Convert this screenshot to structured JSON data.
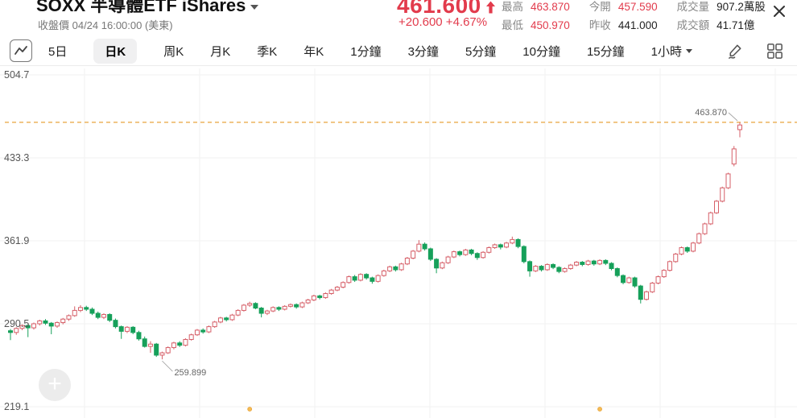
{
  "header": {
    "title": "SOXX 半導體ETF iShares",
    "subtitle": "收盤價 04/24 16:00:00 (美東)",
    "price": "461.600",
    "change": "+20.600 +4.67%",
    "stats": {
      "rows": [
        [
          {
            "label": "最高",
            "value": "463.870",
            "color": "#e23b4c"
          },
          {
            "label": "今開",
            "value": "457.590",
            "color": "#e23b4c"
          },
          {
            "label": "成交量",
            "value": "907.2萬股",
            "color": "#222222"
          }
        ],
        [
          {
            "label": "最低",
            "value": "450.970",
            "color": "#e23b4c"
          },
          {
            "label": "昨收",
            "value": "441.000",
            "color": "#222222"
          },
          {
            "label": "成交額",
            "value": "41.71億",
            "color": "#222222"
          }
        ]
      ]
    }
  },
  "toolbar": {
    "tabs": [
      {
        "label": "5日"
      },
      {
        "label": "日K",
        "selected": true
      },
      {
        "label": "周K"
      },
      {
        "label": "月K"
      },
      {
        "label": "季K"
      },
      {
        "label": "年K"
      },
      {
        "label": "1分鐘"
      },
      {
        "label": "3分鐘"
      },
      {
        "label": "5分鐘"
      },
      {
        "label": "10分鐘"
      },
      {
        "label": "15分鐘"
      },
      {
        "label": "1小時",
        "has_caret": true
      }
    ],
    "icons": [
      "chart-style-icon",
      "draw-pencil-icon",
      "layout-grid-icon"
    ]
  },
  "colors": {
    "up_candle": "#d65f68",
    "down_candle": "#16a05a",
    "price_red": "#e23b4c",
    "high_dashed_line": "#e8a43c",
    "gridline": "#f0f0f0",
    "annotation_text": "#666666",
    "event_dot": "#f5bc55"
  },
  "chart_data": {
    "type": "candlestick",
    "symbol": "SOXX",
    "period": "日K",
    "y_ticks": [
      504.7,
      433.3,
      361.9,
      290.5,
      219.1
    ],
    "high_line": {
      "value": 463.87,
      "label": "463.870"
    },
    "low_annotation": {
      "value": 259.899,
      "label": "259.899",
      "index": 26
    },
    "event_dot_indices": [
      41,
      101
    ],
    "candles": [
      [
        284.5,
        286,
        276.5,
        283
      ],
      [
        283,
        287.5,
        281,
        286.5
      ],
      [
        286.5,
        290,
        285,
        289
      ],
      [
        289,
        290,
        279,
        287
      ],
      [
        287,
        291.5,
        285.5,
        290.5
      ],
      [
        290.5,
        294,
        289,
        293
      ],
      [
        293,
        294.5,
        289.5,
        291
      ],
      [
        291,
        292,
        281.5,
        288.5
      ],
      [
        288.5,
        292.5,
        287,
        291.5
      ],
      [
        291.5,
        295.5,
        290,
        294.5
      ],
      [
        294.5,
        298.5,
        293,
        297.5
      ],
      [
        297.5,
        305.5,
        296.5,
        302
      ],
      [
        302,
        306.5,
        300.5,
        304.5
      ],
      [
        304.5,
        306,
        301.5,
        303
      ],
      [
        303,
        304.5,
        298,
        299.5
      ],
      [
        299.5,
        301,
        294.5,
        296
      ],
      [
        296,
        299.5,
        294.5,
        298.5
      ],
      [
        298.5,
        299.5,
        292,
        293.5
      ],
      [
        293.5,
        295,
        286.5,
        288
      ],
      [
        288,
        289,
        277.5,
        284
      ],
      [
        284,
        288.5,
        282.5,
        287.5
      ],
      [
        287.5,
        288.5,
        281.5,
        283
      ],
      [
        283,
        284.5,
        276,
        277.5
      ],
      [
        277.5,
        279.5,
        270,
        271
      ],
      [
        271,
        275.5,
        265.5,
        273
      ],
      [
        273,
        274,
        262,
        263.5
      ],
      [
        263.5,
        266.5,
        259.899,
        265.5
      ],
      [
        265.5,
        271,
        264.5,
        270
      ],
      [
        270,
        275,
        268.5,
        274
      ],
      [
        274,
        275.5,
        270.5,
        272
      ],
      [
        272,
        278,
        271,
        277
      ],
      [
        277,
        282,
        276,
        281
      ],
      [
        281,
        286,
        280,
        285
      ],
      [
        285,
        286.5,
        282,
        283.5
      ],
      [
        283.5,
        289,
        282.5,
        288
      ],
      [
        288,
        293,
        287,
        292
      ],
      [
        292,
        296.5,
        291,
        295.5
      ],
      [
        295.5,
        296.5,
        292.5,
        294
      ],
      [
        294,
        299,
        293,
        298
      ],
      [
        298,
        303,
        297,
        302
      ],
      [
        302,
        307.5,
        301,
        306.5
      ],
      [
        306.5,
        309.5,
        305,
        308
      ],
      [
        308,
        309,
        303,
        304
      ],
      [
        304,
        305,
        296,
        299.5
      ],
      [
        299.5,
        302.5,
        298,
        301.5
      ],
      [
        301.5,
        305.5,
        300.5,
        304.5
      ],
      [
        304.5,
        305.5,
        301.5,
        303
      ],
      [
        303,
        306.5,
        302,
        305.5
      ],
      [
        305.5,
        308,
        304.5,
        307
      ],
      [
        307,
        308,
        303.5,
        305
      ],
      [
        305,
        309.5,
        304,
        308.5
      ],
      [
        308.5,
        312,
        307.5,
        311
      ],
      [
        311,
        315.5,
        310,
        314.5
      ],
      [
        314.5,
        315.5,
        311.5,
        313
      ],
      [
        313,
        317.5,
        312,
        316.5
      ],
      [
        316.5,
        320.5,
        315.5,
        319.5
      ],
      [
        319.5,
        323,
        318.5,
        322
      ],
      [
        322,
        327,
        321,
        326
      ],
      [
        326,
        332,
        325,
        331
      ],
      [
        331,
        332.5,
        326.5,
        328
      ],
      [
        328,
        334,
        327,
        333
      ],
      [
        333,
        334,
        328.5,
        330
      ],
      [
        330,
        331,
        325,
        327
      ],
      [
        327,
        333,
        326,
        332
      ],
      [
        332,
        337,
        331,
        336
      ],
      [
        336,
        340.5,
        335,
        339.5
      ],
      [
        339.5,
        340.5,
        335.5,
        337
      ],
      [
        337,
        343,
        336,
        342
      ],
      [
        342,
        348,
        341,
        347
      ],
      [
        347,
        354,
        346,
        353
      ],
      [
        353,
        362.5,
        352,
        359
      ],
      [
        359,
        360.5,
        353.5,
        355
      ],
      [
        355,
        356,
        344.5,
        346
      ],
      [
        346,
        347,
        334,
        338.5
      ],
      [
        338.5,
        344,
        337.5,
        343
      ],
      [
        343,
        349,
        342,
        348
      ],
      [
        348,
        353.5,
        347,
        352.5
      ],
      [
        352.5,
        353.5,
        348.5,
        350
      ],
      [
        350,
        355,
        349,
        354
      ],
      [
        354,
        355,
        349.5,
        351
      ],
      [
        351,
        352,
        345.5,
        347.5
      ],
      [
        347.5,
        353,
        346.5,
        352
      ],
      [
        352,
        357,
        351,
        356
      ],
      [
        356,
        359.5,
        355,
        358.5
      ],
      [
        358.5,
        359.5,
        354.5,
        356.5
      ],
      [
        356.5,
        361,
        355.5,
        360
      ],
      [
        360,
        365.5,
        359,
        363
      ],
      [
        363,
        364,
        355.5,
        357
      ],
      [
        357,
        358,
        342.5,
        344
      ],
      [
        344,
        345,
        331,
        336
      ],
      [
        336,
        341,
        335,
        340
      ],
      [
        340,
        341,
        335.5,
        337
      ],
      [
        337,
        342.5,
        336,
        341.5
      ],
      [
        341.5,
        342.5,
        337.5,
        339
      ],
      [
        339,
        340,
        334,
        335.5
      ],
      [
        335.5,
        339,
        334.5,
        338
      ],
      [
        338,
        342,
        337,
        341
      ],
      [
        341,
        344.5,
        340,
        343.5
      ],
      [
        343.5,
        344.5,
        340,
        341.5
      ],
      [
        341.5,
        345.5,
        340.5,
        344.5
      ],
      [
        344.5,
        345.5,
        340.5,
        342
      ],
      [
        342,
        346,
        341,
        345
      ],
      [
        345,
        346,
        341,
        342.5
      ],
      [
        342.5,
        343.5,
        336.5,
        338
      ],
      [
        338,
        339,
        330.5,
        332
      ],
      [
        332,
        333,
        324.5,
        326
      ],
      [
        326,
        331,
        325,
        330
      ],
      [
        330,
        331,
        321.5,
        323
      ],
      [
        323,
        324,
        308,
        311.5
      ],
      [
        311.5,
        319,
        310.5,
        318
      ],
      [
        318,
        326.5,
        317,
        325.5
      ],
      [
        325.5,
        332,
        324.5,
        331
      ],
      [
        331,
        337.5,
        330,
        336.5
      ],
      [
        336.5,
        345,
        335.5,
        344
      ],
      [
        344,
        351.5,
        343,
        350.5
      ],
      [
        350.5,
        357,
        349.5,
        356
      ],
      [
        356,
        357,
        351.5,
        353
      ],
      [
        353,
        361,
        352,
        360
      ],
      [
        360,
        369,
        359,
        368
      ],
      [
        368,
        377.5,
        367,
        376.5
      ],
      [
        376.5,
        387,
        375.5,
        386
      ],
      [
        386,
        397,
        385,
        396
      ],
      [
        396,
        408.5,
        395,
        407.5
      ],
      [
        407.5,
        420.5,
        406.5,
        419.5
      ],
      [
        428,
        443.5,
        426,
        441
      ],
      [
        457.59,
        463.87,
        450.97,
        461.6
      ]
    ]
  },
  "floating": {
    "plus_label": "+"
  }
}
